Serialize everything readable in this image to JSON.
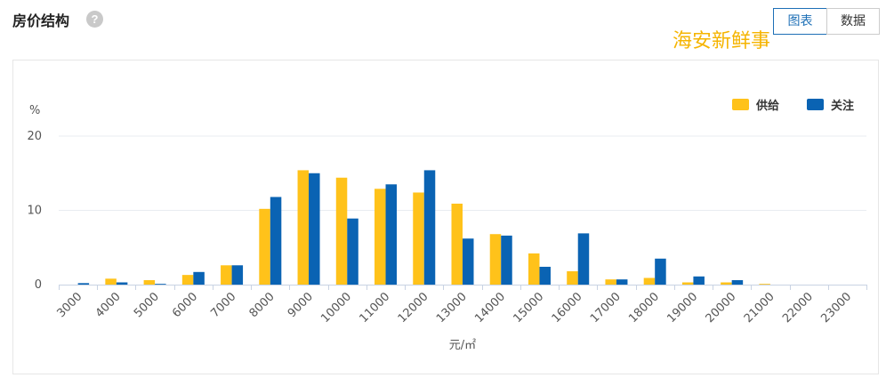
{
  "header": {
    "title": "房价结构",
    "help_icon": "question-circle-icon",
    "tabs": [
      "图表",
      "数据"
    ],
    "active_tab": "图表"
  },
  "watermark": "海安新鲜事",
  "colors": {
    "supply": "#FFC21A",
    "attention": "#0A63B3",
    "grid": "#E9ECF1",
    "axis": "#C9D3E3",
    "active_tab": "#1D6FB6"
  },
  "chart_data": {
    "type": "bar",
    "ylabel": "%",
    "xlabel": "元/㎡",
    "ylim": [
      0,
      20
    ],
    "yticks": [
      0,
      10,
      20
    ],
    "legend_position": "top-right",
    "categories": [
      "3000",
      "4000",
      "5000",
      "6000",
      "7000",
      "8000",
      "9000",
      "10000",
      "11000",
      "12000",
      "13000",
      "14000",
      "15000",
      "16000",
      "17000",
      "18000",
      "19000",
      "20000",
      "21000",
      "22000",
      "23000"
    ],
    "series": [
      {
        "name": "供给",
        "color": "#FFC21A",
        "values": [
          0,
          0.8,
          0.6,
          1.3,
          2.6,
          10.2,
          15.4,
          14.4,
          12.9,
          12.4,
          10.9,
          6.8,
          4.2,
          1.8,
          0.7,
          0.9,
          0.3,
          0.3,
          0.1,
          0,
          0
        ]
      },
      {
        "name": "关注",
        "color": "#0A63B3",
        "values": [
          0.2,
          0.3,
          0.1,
          1.7,
          2.6,
          11.8,
          15.0,
          8.9,
          13.5,
          15.4,
          6.2,
          6.6,
          2.4,
          6.9,
          0.7,
          3.5,
          1.1,
          0.6,
          0,
          0,
          0
        ]
      }
    ]
  }
}
